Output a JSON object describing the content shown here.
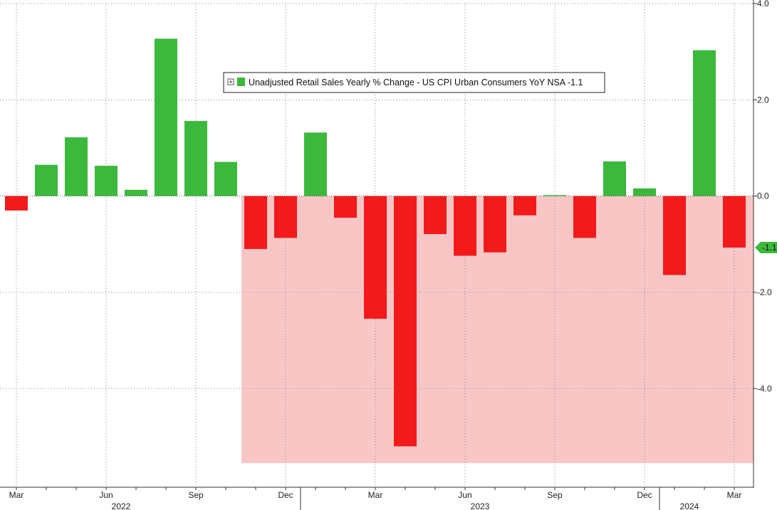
{
  "chart_data": {
    "type": "bar",
    "legend": {
      "label": "Unadjusted Retail Sales Yearly % Change - US CPI Urban Consumers YoY NSA -1.1",
      "placement": "top-center",
      "swatch_color": "#3cb83c"
    },
    "x": [
      "2022-03",
      "2022-04",
      "2022-05",
      "2022-06",
      "2022-07",
      "2022-08",
      "2022-09",
      "2022-10",
      "2022-11",
      "2022-12",
      "2023-01",
      "2023-02",
      "2023-03",
      "2023-04",
      "2023-05",
      "2023-06",
      "2023-07",
      "2023-08",
      "2023-09",
      "2023-10",
      "2023-11",
      "2023-12",
      "2024-01",
      "2024-02",
      "2024-03"
    ],
    "values": [
      -0.3,
      0.65,
      1.22,
      0.63,
      0.13,
      3.27,
      1.56,
      0.71,
      -1.1,
      -0.87,
      1.32,
      -0.45,
      -2.55,
      -5.2,
      -0.79,
      -1.24,
      -1.17,
      -0.4,
      0.02,
      -0.87,
      0.72,
      0.16,
      -1.64,
      3.03,
      -1.07
    ],
    "month_labels": [
      {
        "x": "2022-03",
        "label": "Mar"
      },
      {
        "x": "2022-06",
        "label": "Jun"
      },
      {
        "x": "2022-09",
        "label": "Sep"
      },
      {
        "x": "2022-12",
        "label": "Dec"
      },
      {
        "x": "2023-03",
        "label": "Mar"
      },
      {
        "x": "2023-06",
        "label": "Jun"
      },
      {
        "x": "2023-09",
        "label": "Sep"
      },
      {
        "x": "2023-12",
        "label": "Dec"
      },
      {
        "x": "2024-03",
        "label": "Mar"
      }
    ],
    "year_labels": [
      {
        "x": "2022-07",
        "label": "2022"
      },
      {
        "x": "2023-07",
        "label": "2023"
      },
      {
        "x": "2024-02",
        "label": "2024"
      }
    ],
    "y_ticks": [
      {
        "value": 4,
        "label": "4.0"
      },
      {
        "value": 2,
        "label": "2.0"
      },
      {
        "value": 0,
        "label": "0.0"
      },
      {
        "value": -2,
        "label": "-2.0"
      },
      {
        "value": -4,
        "label": "-4.0"
      }
    ],
    "ylim": [
      -6.05,
      4.0
    ],
    "y_axis_position": "right",
    "grid": true,
    "shaded_region": {
      "x_start": "2022-11",
      "x_end": "2024-03",
      "y_min": -5.55,
      "y_max": 0,
      "color": "#f9c6c6"
    },
    "last_value_label": "-1.1",
    "colors": {
      "positive": "#3cb83c",
      "negative": "#f21a1a",
      "grid": "#888888",
      "axis": "#333333",
      "last_value_tag": "#3cb83c"
    }
  }
}
